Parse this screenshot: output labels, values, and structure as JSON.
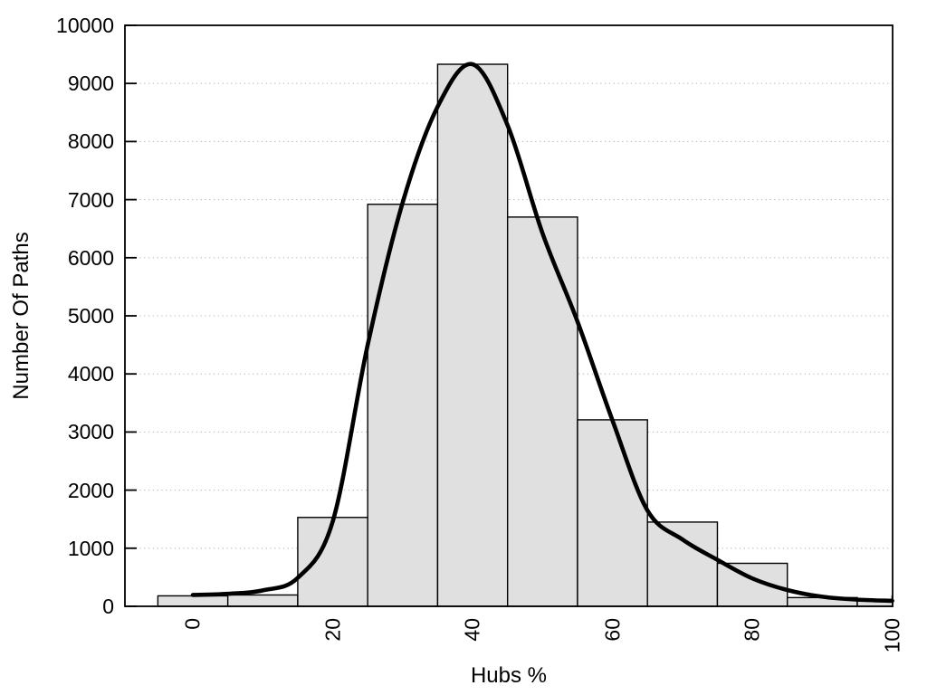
{
  "figure": {
    "background": "#ffffff",
    "description": "Histogram of Number Of Paths vs Hubs % with smoothed density curve overlay"
  },
  "chart_data": {
    "type": "bar",
    "subtype": "histogram-with-density-line",
    "title": "",
    "xlabel": "Hubs %",
    "ylabel": "Number Of Paths",
    "xlim": [
      -9.71,
      100.05
    ],
    "ylim": [
      0,
      10000
    ],
    "x_ticks": [
      0,
      20,
      40,
      60,
      80,
      100
    ],
    "y_ticks": [
      0,
      1000,
      2000,
      3000,
      4000,
      5000,
      6000,
      7000,
      8000,
      9000,
      10000
    ],
    "grid": {
      "horizontal_at": [
        1000,
        2000,
        3000,
        4000,
        5000,
        6000,
        7000,
        8000,
        9000
      ],
      "style": "dotted",
      "vertical": false
    },
    "legend_position": "none",
    "bins": {
      "edges": [
        -5,
        5,
        15,
        25,
        35,
        45,
        55,
        65,
        75,
        85,
        95,
        100.05
      ],
      "counts": [
        180,
        195,
        1530,
        6920,
        9330,
        6700,
        3210,
        1450,
        740,
        150,
        115
      ],
      "note": "last bin clipped at right axis limit"
    },
    "series": [
      {
        "name": "density-curve",
        "type": "line",
        "x": [
          0,
          5,
          10,
          15,
          20,
          25,
          30,
          35,
          40,
          45,
          50,
          55,
          60,
          65,
          70,
          75,
          80,
          85,
          90,
          95,
          100
        ],
        "y": [
          195,
          215,
          275,
          490,
          1460,
          4500,
          6950,
          8600,
          9330,
          8280,
          6420,
          4900,
          3200,
          1650,
          1150,
          800,
          480,
          280,
          165,
          115,
          95
        ]
      }
    ],
    "colors": {
      "bar_fill": "#e0e0e0",
      "bar_border": "#000000",
      "curve": "#000000",
      "grid": "#b8b8b8",
      "axis": "#000000",
      "text": "#000000"
    }
  }
}
